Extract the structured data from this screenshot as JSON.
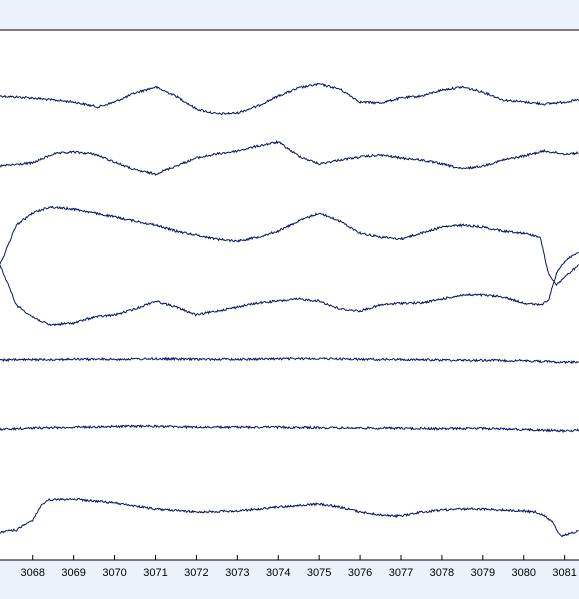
{
  "chart_data": {
    "type": "line",
    "title": "",
    "xlabel": "",
    "ylabel": "",
    "grid": false,
    "xlim": [
      3067.2,
      3081.35
    ],
    "x_ticks": [
      3068,
      3069,
      3070,
      3071,
      3072,
      3073,
      3074,
      3075,
      3076,
      3077,
      3078,
      3079,
      3080,
      3081
    ],
    "x_tick_labels": [
      "3068",
      "3069",
      "3070",
      "3071",
      "3072",
      "3073",
      "3074",
      "3075",
      "3076",
      "3077",
      "3078",
      "3079",
      "3080",
      "3081"
    ],
    "trace_color": "#0a1464",
    "series": [
      {
        "x": [
          3067.2,
          3068.0,
          3069.0,
          3069.6,
          3070.0,
          3070.5,
          3071.0,
          3071.5,
          3072.0,
          3072.5,
          3073.0,
          3073.5,
          3074.0,
          3074.5,
          3075.0,
          3075.5,
          3076.0,
          3076.5,
          3077.0,
          3077.5,
          3078.0,
          3078.5,
          3079.0,
          3079.5,
          3080.0,
          3080.5,
          3081.0,
          3081.35
        ],
        "y": [
          0.2,
          0.1,
          -0.1,
          -0.35,
          -0.1,
          0.35,
          0.65,
          0.2,
          -0.45,
          -0.7,
          -0.65,
          -0.3,
          0.2,
          0.6,
          0.8,
          0.55,
          -0.1,
          -0.15,
          0.1,
          0.2,
          0.5,
          0.65,
          0.4,
          0.0,
          -0.1,
          -0.2,
          -0.1,
          0.0
        ]
      },
      {
        "x": [
          3067.2,
          3068.0,
          3068.5,
          3069.0,
          3069.5,
          3070.0,
          3070.5,
          3071.0,
          3071.5,
          3072.0,
          3072.5,
          3073.0,
          3073.5,
          3074.0,
          3074.5,
          3075.0,
          3075.5,
          3076.0,
          3076.5,
          3077.0,
          3077.5,
          3078.0,
          3078.5,
          3079.0,
          3079.5,
          3080.0,
          3080.5,
          3081.0,
          3081.35
        ],
        "y": [
          -0.3,
          -0.15,
          0.3,
          0.4,
          0.3,
          -0.1,
          -0.5,
          -0.7,
          -0.3,
          0.1,
          0.3,
          0.45,
          0.7,
          0.9,
          0.2,
          -0.2,
          0.0,
          0.15,
          0.25,
          0.1,
          0.0,
          -0.2,
          -0.45,
          -0.3,
          0.0,
          0.2,
          0.45,
          0.3,
          0.35
        ]
      },
      {
        "x": [
          3067.2,
          3067.4,
          3067.6,
          3068.0,
          3068.4,
          3069.0,
          3069.5,
          3070.0,
          3070.5,
          3071.0,
          3071.5,
          3072.0,
          3072.5,
          3073.0,
          3073.5,
          3074.0,
          3074.5,
          3075.0,
          3075.5,
          3076.0,
          3076.5,
          3077.0,
          3077.5,
          3078.0,
          3078.5,
          3079.0,
          3079.5,
          3080.0,
          3080.4,
          3080.6,
          3080.8,
          3081.0,
          3081.35
        ],
        "y": [
          0.0,
          -0.5,
          -1.0,
          -1.3,
          -1.5,
          -1.45,
          -1.3,
          -1.25,
          -1.1,
          -0.9,
          -1.05,
          -1.25,
          -1.15,
          -1.05,
          -0.95,
          -0.9,
          -0.85,
          -0.9,
          -1.1,
          -1.15,
          -1.0,
          -0.95,
          -0.95,
          -0.85,
          -0.75,
          -0.75,
          -0.8,
          -0.95,
          -1.0,
          -0.9,
          -0.2,
          0.1,
          0.35
        ]
      },
      {
        "x": [
          3067.2,
          3067.4,
          3067.6,
          3068.0,
          3068.4,
          3069.0,
          3069.5,
          3070.0,
          3070.5,
          3071.0,
          3071.5,
          3072.0,
          3072.5,
          3073.0,
          3073.5,
          3074.0,
          3074.5,
          3075.0,
          3075.5,
          3076.0,
          3076.5,
          3077.0,
          3077.5,
          3078.0,
          3078.5,
          3079.0,
          3079.5,
          3080.0,
          3080.4,
          3080.6,
          3080.8,
          3081.0,
          3081.35
        ],
        "y": [
          0.0,
          0.5,
          1.0,
          1.3,
          1.45,
          1.4,
          1.3,
          1.2,
          1.1,
          1.0,
          0.85,
          0.75,
          0.65,
          0.6,
          0.7,
          0.85,
          1.1,
          1.3,
          1.1,
          0.8,
          0.7,
          0.65,
          0.8,
          0.95,
          1.0,
          0.95,
          0.85,
          0.8,
          0.7,
          -0.2,
          -0.5,
          -0.3,
          0.0
        ]
      },
      {
        "x": [
          3067.2,
          3068.0,
          3069.0,
          3070.0,
          3071.0,
          3072.0,
          3073.0,
          3074.0,
          3075.0,
          3076.0,
          3077.0,
          3078.0,
          3079.0,
          3080.0,
          3081.0,
          3081.35
        ],
        "y": [
          0.0,
          0.02,
          0.05,
          0.05,
          0.08,
          0.05,
          0.05,
          0.08,
          0.1,
          0.05,
          0.03,
          0.0,
          -0.02,
          -0.05,
          -0.15,
          -0.12
        ]
      },
      {
        "x": [
          3067.2,
          3068.0,
          3069.0,
          3070.0,
          3070.5,
          3071.0,
          3072.0,
          3073.0,
          3074.0,
          3075.0,
          3076.0,
          3077.0,
          3078.0,
          3079.0,
          3080.0,
          3081.0,
          3081.35
        ],
        "y": [
          -0.1,
          0.0,
          0.05,
          0.1,
          0.12,
          0.12,
          0.05,
          0.05,
          0.05,
          0.02,
          0.0,
          -0.02,
          -0.05,
          -0.02,
          -0.1,
          -0.2,
          -0.15
        ]
      },
      {
        "x": [
          3067.2,
          3067.6,
          3068.0,
          3068.2,
          3068.4,
          3069.0,
          3069.5,
          3070.0,
          3070.5,
          3071.0,
          3072.0,
          3073.0,
          3074.0,
          3075.0,
          3075.5,
          3076.0,
          3076.5,
          3077.0,
          3077.5,
          3078.0,
          3078.5,
          3079.0,
          3079.5,
          3080.0,
          3080.3,
          3080.5,
          3080.7,
          3080.9,
          3081.1,
          3081.35
        ],
        "y": [
          -1.6,
          -1.5,
          -1.0,
          -0.3,
          0.0,
          0.05,
          -0.05,
          -0.15,
          -0.3,
          -0.45,
          -0.6,
          -0.55,
          -0.35,
          -0.2,
          -0.35,
          -0.6,
          -0.75,
          -0.8,
          -0.6,
          -0.5,
          -0.45,
          -0.45,
          -0.5,
          -0.55,
          -0.6,
          -0.8,
          -1.1,
          -1.8,
          -1.7,
          -1.55
        ]
      }
    ]
  }
}
